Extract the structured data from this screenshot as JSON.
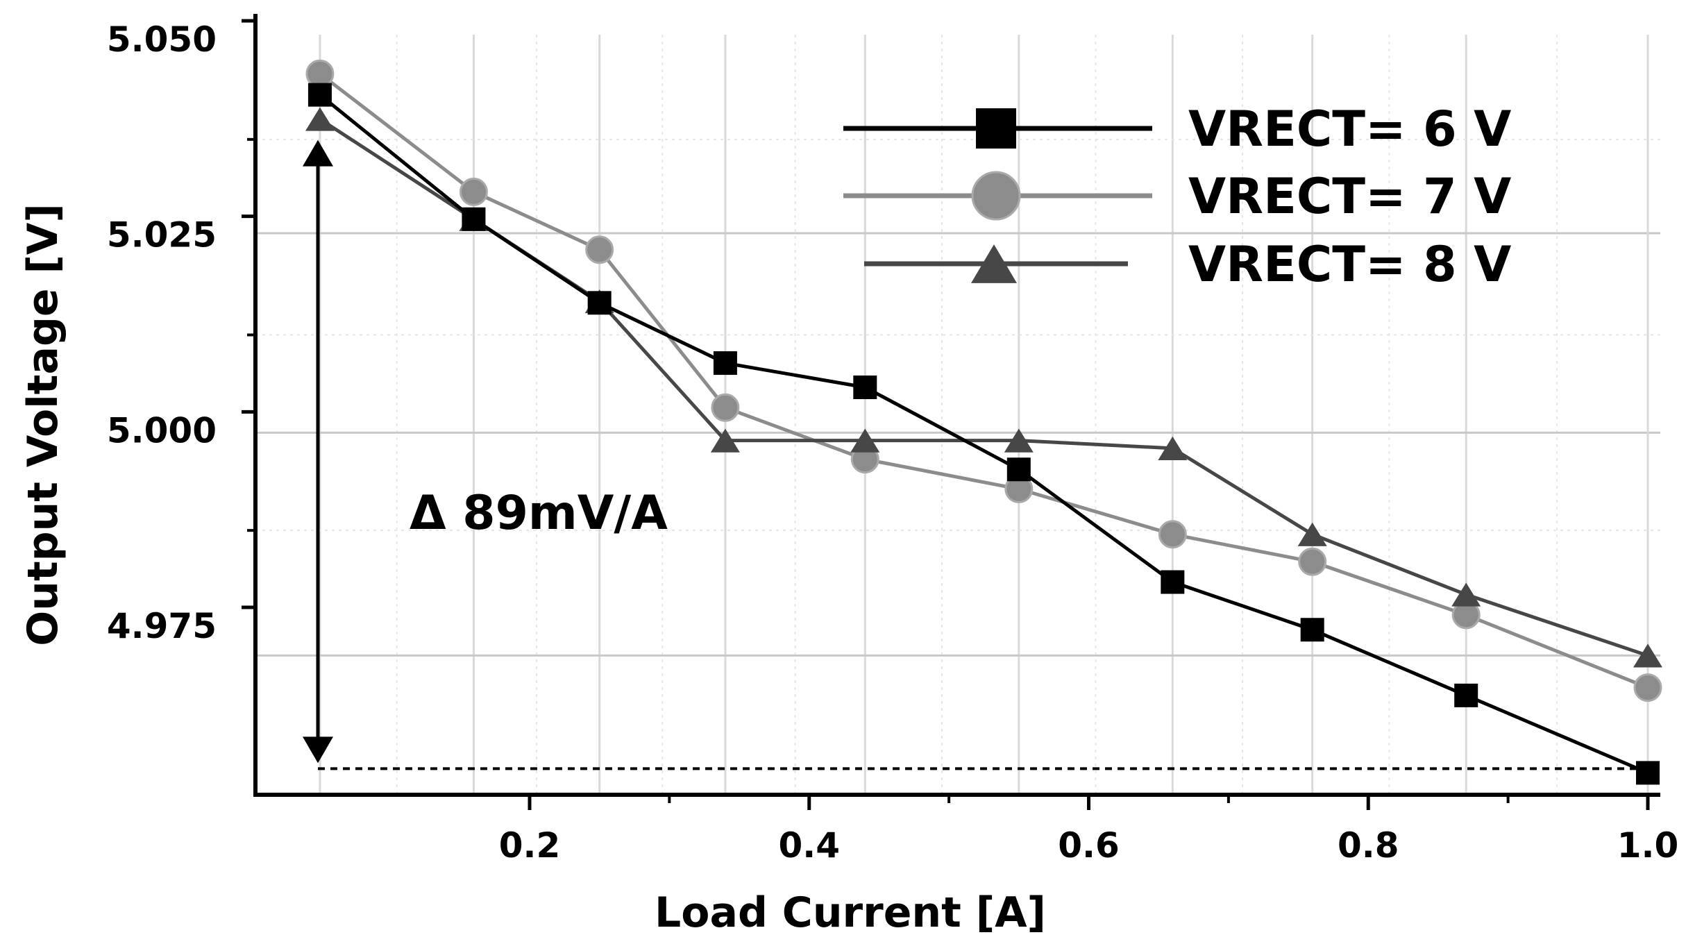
{
  "chart_data": {
    "type": "line",
    "xlabel": "Load Current [A]",
    "ylabel": "Output Voltage [V]",
    "x_tick_labels": [
      "0.2",
      "0.4",
      "0.6",
      "0.8",
      "1.0"
    ],
    "y_tick_labels": [
      "4.975",
      "5.000",
      "5.025",
      "5.050"
    ],
    "grid": true,
    "legend_position": "top-right",
    "x": [
      0.05,
      0.16,
      0.25,
      0.34,
      0.44,
      0.55,
      0.66,
      0.76,
      0.87,
      1.0
    ],
    "series": [
      {
        "name": "VRECT= 6 V",
        "color": "#000000",
        "marker": "square",
        "values": [
          5.0432,
          5.0273,
          5.0166,
          5.0089,
          5.0058,
          4.9953,
          4.9809,
          4.9748,
          4.9664,
          4.9565
        ]
      },
      {
        "name": "VRECT= 7 V",
        "color": "#8c8c8c",
        "marker": "circle",
        "values": [
          5.0459,
          5.0308,
          5.0234,
          5.0032,
          4.9966,
          4.9928,
          4.987,
          4.9835,
          4.9767,
          4.9674
        ]
      },
      {
        "name": "VRECT= 8 V",
        "color": "#474747",
        "marker": "triangle",
        "values": [
          5.0401,
          5.0273,
          5.0168,
          4.999,
          4.999,
          4.999,
          4.998,
          4.987,
          4.9793,
          4.9715
        ]
      }
    ],
    "annotation": {
      "text": "Δ 89mV/A"
    }
  }
}
